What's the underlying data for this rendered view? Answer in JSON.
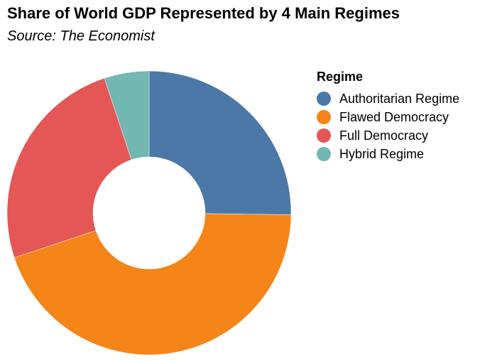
{
  "chart_data": {
    "type": "pie",
    "title": "Share of World GDP Represented by 4 Main Regimes",
    "subtitle": "Source: The Economist",
    "legend_title": "Regime",
    "legend_position": "right",
    "donut": true,
    "slices": [
      {
        "label": "Authoritarian Regime",
        "value": 25.2,
        "color": "#4c78a8"
      },
      {
        "label": "Flawed Democracy",
        "value": 44.7,
        "color": "#f58518"
      },
      {
        "label": "Full Democracy",
        "value": 25.0,
        "color": "#e45756"
      },
      {
        "label": "Hybrid Regime",
        "value": 5.1,
        "color": "#72b7b2"
      }
    ]
  }
}
